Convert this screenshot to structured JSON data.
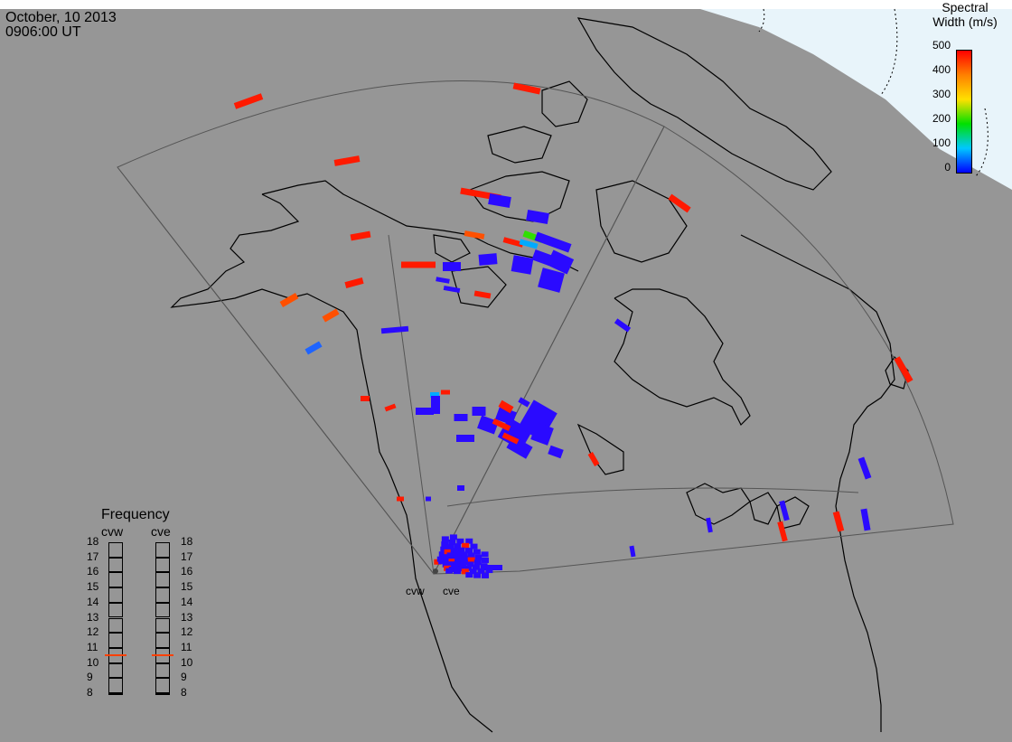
{
  "header": {
    "date": "October, 10 2013",
    "time": "0906:00 UT"
  },
  "colorbar": {
    "title_line1": "Spectral",
    "title_line2": "Width (m/s)",
    "ticks": [
      "500",
      "400",
      "300",
      "200",
      "100",
      "0"
    ],
    "range": [
      0,
      500
    ],
    "colors": [
      "#0000ff",
      "#00c8ff",
      "#00e000",
      "#ffe000",
      "#ff8000",
      "#ff0000"
    ]
  },
  "frequency_panel": {
    "title": "Frequency",
    "columns": [
      {
        "name": "cvw",
        "value_mhz": 10.6
      },
      {
        "name": "cve",
        "value_mhz": 10.6
      }
    ],
    "scale": [
      "18",
      "17",
      "16",
      "15",
      "14",
      "13",
      "12",
      "11",
      "10",
      "9",
      "8"
    ],
    "indicator_color": "#ff4000"
  },
  "radars": [
    {
      "name": "cvw"
    },
    {
      "name": "cve"
    }
  ],
  "colors": {
    "ocean": "#969696",
    "land": "#969696",
    "polar_cap": "#e8f4fa",
    "coast": "#000000",
    "fov": "#555555"
  }
}
